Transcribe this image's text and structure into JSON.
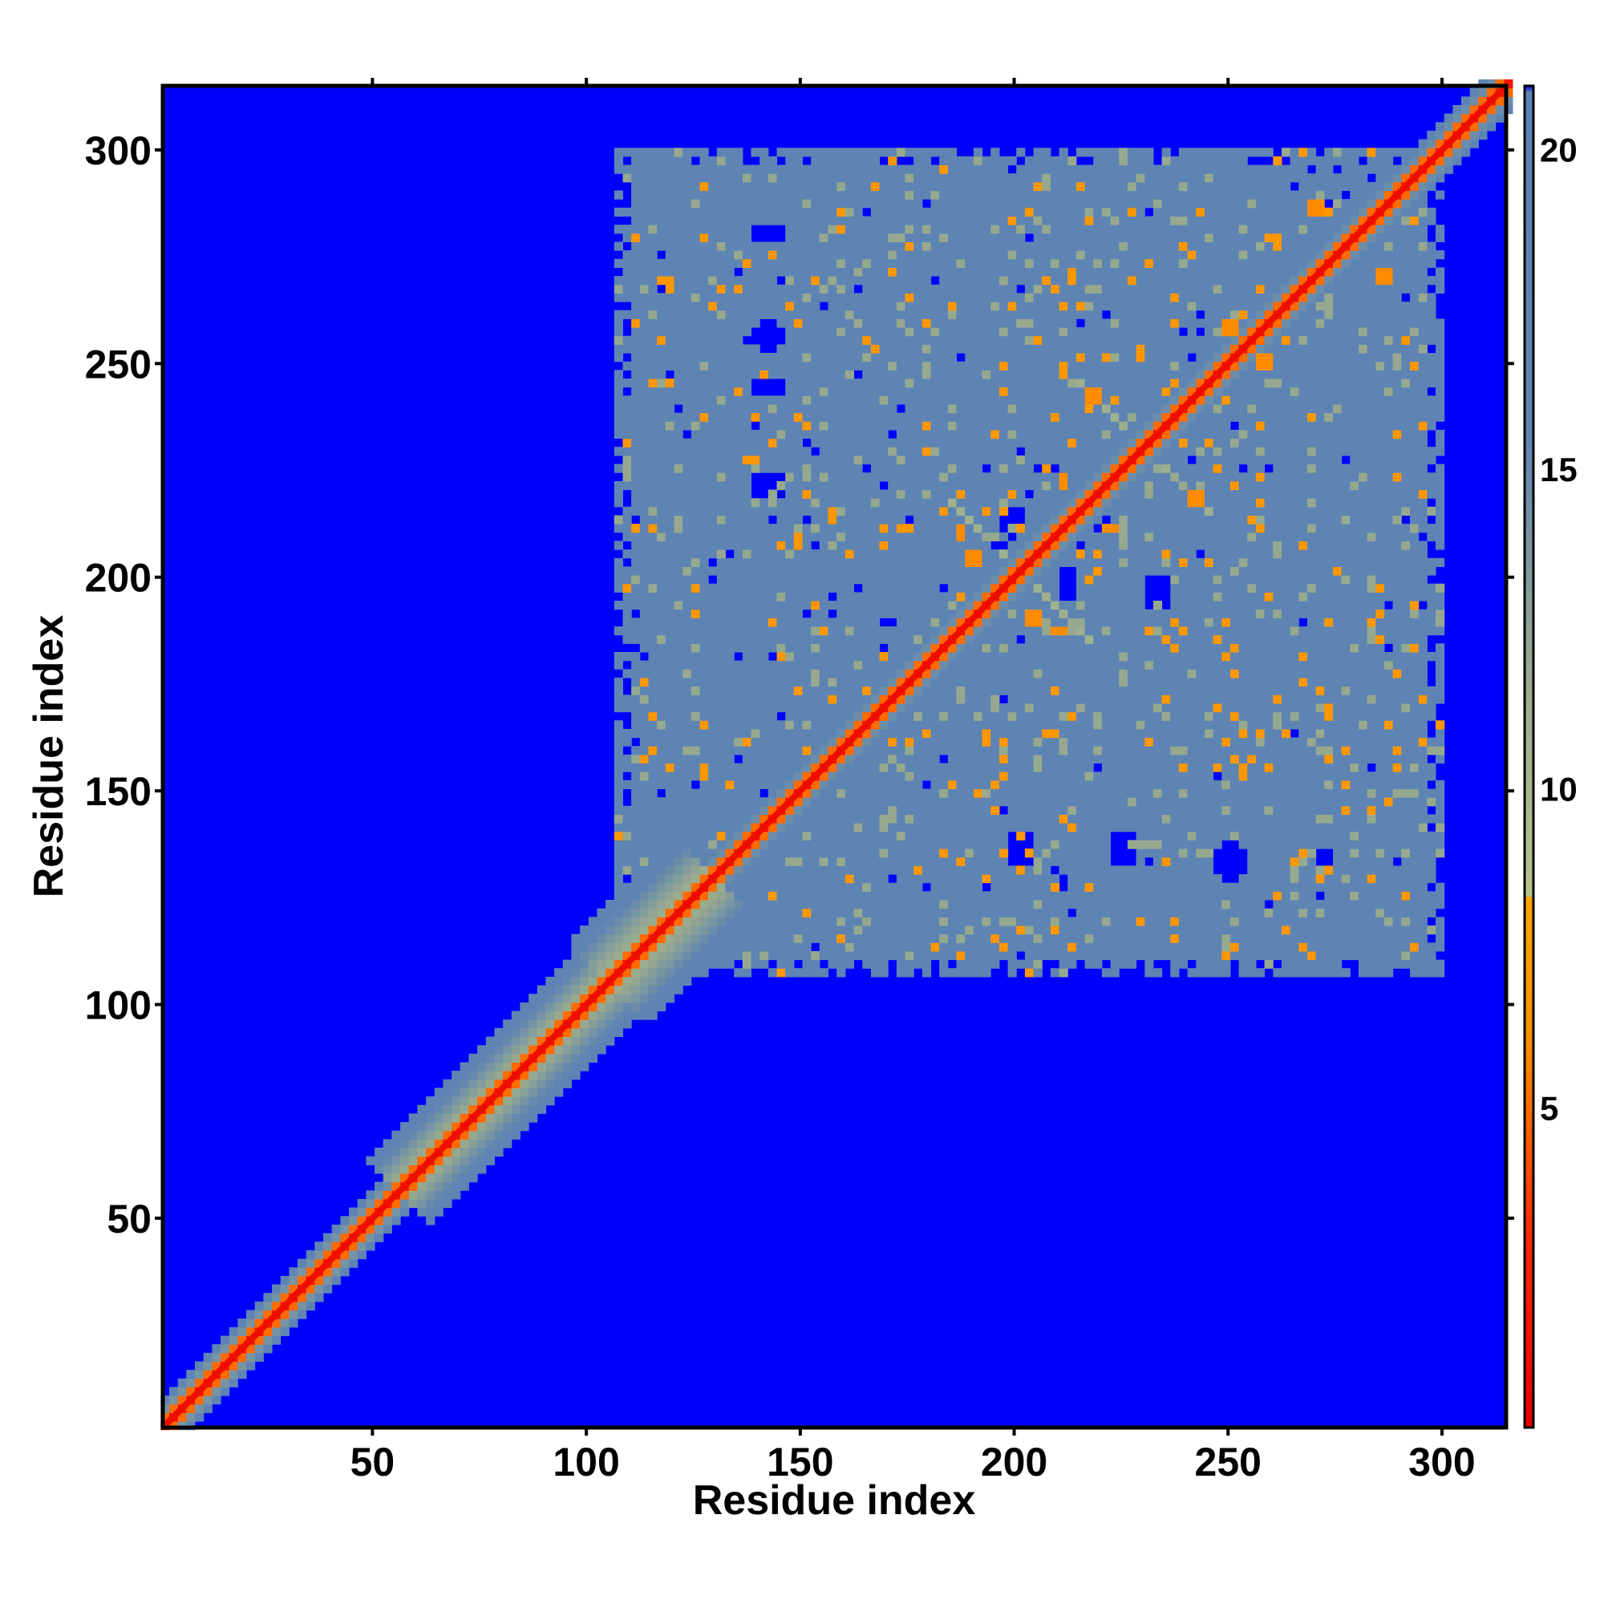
{
  "chart_data": {
    "type": "heatmap",
    "title": "",
    "xlabel": "Residue index",
    "ylabel": "Residue index",
    "xlim": [
      1,
      315
    ],
    "ylim": [
      1,
      315
    ],
    "x_ticks": [
      50,
      100,
      150,
      200,
      250,
      300
    ],
    "y_ticks": [
      50,
      100,
      150,
      200,
      250,
      300
    ],
    "colorbar": {
      "range": [
        0,
        21
      ],
      "ticks": [
        5,
        10,
        15,
        20
      ],
      "stops": [
        {
          "value": 0,
          "color": "#e60000"
        },
        {
          "value": 3,
          "color": "#ff2a00"
        },
        {
          "value": 6,
          "color": "#ff8c00"
        },
        {
          "value": 8.3,
          "color": "#ffa500"
        },
        {
          "value": 8.31,
          "color": "#b7c48a"
        },
        {
          "value": 12,
          "color": "#96a98f"
        },
        {
          "value": 15.5,
          "color": "#5f84b3"
        },
        {
          "value": 20.9,
          "color": "#5b83b5"
        },
        {
          "value": 21,
          "color": "#0000ff"
        }
      ]
    },
    "background_value": 21,
    "colors": {
      "background": "#0000ff",
      "near": "#ff0000",
      "contact": "#ff8c00",
      "medium": "#a5b98e",
      "far": "#5b83b5"
    },
    "regions": [
      {
        "name": "diagonal",
        "x_range": [
          1,
          315
        ],
        "width_residues": 8
      },
      {
        "name": "domain",
        "x_range": [
          107,
          300
        ],
        "y_range": [
          107,
          300
        ],
        "value": 18
      }
    ],
    "diagonal_bands": [
      {
        "center": 201,
        "arms_to": [
          231,
          231
        ],
        "value": 6
      },
      {
        "center": 230,
        "arms_to": [
          215,
          245
        ],
        "value": 6
      }
    ],
    "holes": [
      [
        217,
        214,
        5,
        4
      ],
      [
        230,
        229,
        5,
        4
      ],
      [
        199,
        213,
        3,
        3
      ],
      [
        246,
        245,
        5,
        3
      ],
      [
        264,
        264,
        4,
        3
      ],
      [
        275,
        276,
        3,
        3
      ],
      [
        233,
        196,
        3,
        5
      ],
      [
        212,
        198,
        3,
        4
      ],
      [
        142,
        221,
        5,
        3
      ],
      [
        142,
        244,
        5,
        3
      ],
      [
        142,
        256,
        4,
        4
      ],
      [
        142,
        280,
        4,
        3
      ],
      [
        201,
        136,
        3,
        5
      ],
      [
        225,
        136,
        4,
        5
      ],
      [
        250,
        133,
        4,
        5
      ],
      [
        272,
        133,
        3,
        4
      ]
    ],
    "hotspots": [
      [
        211,
        222
      ],
      [
        222,
        211
      ],
      [
        204,
        190
      ],
      [
        190,
        204
      ],
      [
        270,
        286
      ],
      [
        286,
        270
      ],
      [
        250,
        258
      ],
      [
        258,
        250
      ],
      [
        242,
        218
      ],
      [
        218,
        242
      ],
      [
        187,
        210
      ],
      [
        210,
        187
      ]
    ]
  }
}
